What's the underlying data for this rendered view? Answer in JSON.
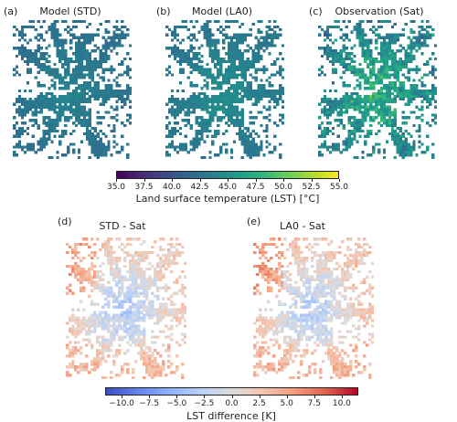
{
  "top_row": {
    "panels": [
      {
        "letter": "(a)",
        "title": "Model (STD)"
      },
      {
        "letter": "(b)",
        "title": "Model (LA0)"
      },
      {
        "letter": "(c)",
        "title": "Observation (Sat)"
      }
    ]
  },
  "bottom_row": {
    "panels": [
      {
        "letter": "(d)",
        "title": "STD - Sat"
      },
      {
        "letter": "(e)",
        "title": "LA0 - Sat"
      }
    ]
  },
  "chart_data": [
    {
      "type": "heatmap",
      "colormap": "viridis",
      "colorbar": {
        "label": "Land surface temperature (LST) [°C]",
        "range": [
          35.0,
          55.0
        ],
        "ticks": [
          "35.0",
          "37.5",
          "40.0",
          "42.5",
          "45.0",
          "47.5",
          "50.0",
          "52.5",
          "55.0"
        ]
      },
      "typical_values": {
        "Model (STD)": 42.5,
        "Model (LA0)": 43.0,
        "Observation (Sat)": 46.0
      }
    },
    {
      "type": "heatmap",
      "colormap": "coolwarm",
      "colorbar": {
        "label": "LST difference [K]",
        "range": [
          -11.5,
          11.5
        ],
        "ticks": [
          "−10.0",
          "−7.5",
          "−5.0",
          "−2.5",
          "0.0",
          "2.5",
          "5.0",
          "7.5",
          "10.0"
        ]
      }
    }
  ]
}
